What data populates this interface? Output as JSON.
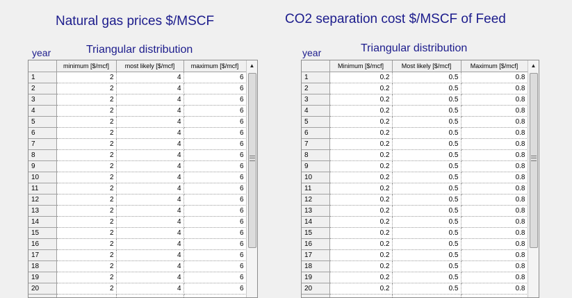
{
  "left": {
    "title": "Natural gas prices $/MSCF",
    "subtitle": "Triangular distribution",
    "year_label": "year",
    "columns": [
      "minimum [$/mcf]",
      "most likely [$/mcf]",
      "maximum [$/mcf]"
    ],
    "rows": [
      [
        "1",
        "2",
        "4",
        "6"
      ],
      [
        "2",
        "2",
        "4",
        "6"
      ],
      [
        "3",
        "2",
        "4",
        "6"
      ],
      [
        "4",
        "2",
        "4",
        "6"
      ],
      [
        "5",
        "2",
        "4",
        "6"
      ],
      [
        "6",
        "2",
        "4",
        "6"
      ],
      [
        "7",
        "2",
        "4",
        "6"
      ],
      [
        "8",
        "2",
        "4",
        "6"
      ],
      [
        "9",
        "2",
        "4",
        "6"
      ],
      [
        "10",
        "2",
        "4",
        "6"
      ],
      [
        "11",
        "2",
        "4",
        "6"
      ],
      [
        "12",
        "2",
        "4",
        "6"
      ],
      [
        "13",
        "2",
        "4",
        "6"
      ],
      [
        "14",
        "2",
        "4",
        "6"
      ],
      [
        "15",
        "2",
        "4",
        "6"
      ],
      [
        "16",
        "2",
        "4",
        "6"
      ],
      [
        "17",
        "2",
        "4",
        "6"
      ],
      [
        "18",
        "2",
        "4",
        "6"
      ],
      [
        "19",
        "2",
        "4",
        "6"
      ],
      [
        "20",
        "2",
        "4",
        "6"
      ],
      [
        "",
        "",
        "",
        ""
      ]
    ]
  },
  "right": {
    "title": "CO2 separation cost  $/MSCF of Feed",
    "subtitle": "Triangular distribution",
    "year_label": "year",
    "columns": [
      "Minimum [$/mcf]",
      "Most likely [$/mcf]",
      "Maximum [$/mcf]"
    ],
    "rows": [
      [
        "1",
        "0.2",
        "0.5",
        "0.8"
      ],
      [
        "2",
        "0.2",
        "0.5",
        "0.8"
      ],
      [
        "3",
        "0.2",
        "0.5",
        "0.8"
      ],
      [
        "4",
        "0.2",
        "0.5",
        "0.8"
      ],
      [
        "5",
        "0.2",
        "0.5",
        "0.8"
      ],
      [
        "6",
        "0.2",
        "0.5",
        "0.8"
      ],
      [
        "7",
        "0.2",
        "0.5",
        "0.8"
      ],
      [
        "8",
        "0.2",
        "0.5",
        "0.8"
      ],
      [
        "9",
        "0.2",
        "0.5",
        "0.8"
      ],
      [
        "10",
        "0.2",
        "0.5",
        "0.8"
      ],
      [
        "11",
        "0.2",
        "0.5",
        "0.8"
      ],
      [
        "12",
        "0.2",
        "0.5",
        "0.8"
      ],
      [
        "13",
        "0.2",
        "0.5",
        "0.8"
      ],
      [
        "14",
        "0.2",
        "0.5",
        "0.8"
      ],
      [
        "15",
        "0.2",
        "0.5",
        "0.8"
      ],
      [
        "16",
        "0.2",
        "0.5",
        "0.8"
      ],
      [
        "17",
        "0.2",
        "0.5",
        "0.8"
      ],
      [
        "18",
        "0.2",
        "0.5",
        "0.8"
      ],
      [
        "19",
        "0.2",
        "0.5",
        "0.8"
      ],
      [
        "20",
        "0.2",
        "0.5",
        "0.8"
      ],
      [
        "",
        "",
        "",
        ""
      ]
    ]
  },
  "scrollbar": {
    "up_icon": "arrow-up-icon",
    "grip_icon": "grip-icon"
  }
}
